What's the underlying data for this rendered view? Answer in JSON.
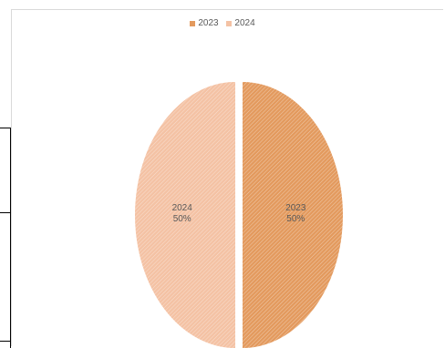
{
  "chart_data": {
    "type": "pie",
    "title": "",
    "slices": [
      {
        "name": "2023",
        "value": 50,
        "label": "50%",
        "color": "#E39A5E"
      },
      {
        "name": "2024",
        "value": 50,
        "label": "50%",
        "color": "#F4C2A4"
      }
    ],
    "legend_position": "top",
    "legend": [
      "2023",
      "2024"
    ],
    "hatched": true
  }
}
